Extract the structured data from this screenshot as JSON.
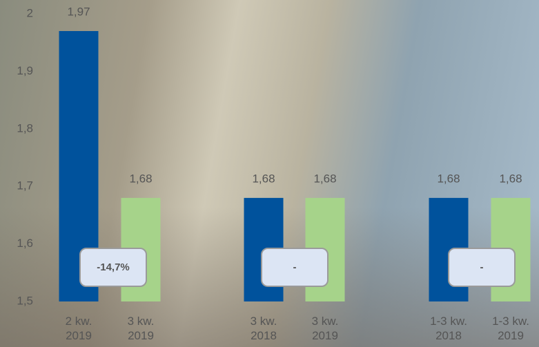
{
  "chart_data": {
    "type": "bar",
    "categories": [
      "2 kw. 2019",
      "3 kw. 2019",
      "3 kw. 2018",
      "3 kw. 2019",
      "1-3 kw. 2018",
      "1-3 kw. 2019"
    ],
    "values": [
      1.97,
      1.68,
      1.68,
      1.68,
      1.68,
      1.68
    ],
    "value_labels": [
      "1,97",
      "1,68",
      "1,68",
      "1,68",
      "1,68",
      "1,68"
    ],
    "colors": [
      "#00529c",
      "#a6d38a",
      "#00529c",
      "#a6d38a",
      "#00529c",
      "#a6d38a"
    ],
    "ylim": [
      1.5,
      2
    ],
    "yticks": [
      {
        "value": 1.5,
        "label": "1,5"
      },
      {
        "value": 1.6,
        "label": "1,6"
      },
      {
        "value": 1.7,
        "label": "1,7"
      },
      {
        "value": 1.8,
        "label": "1,8"
      },
      {
        "value": 1.9,
        "label": "1,9"
      },
      2
    ],
    "annotations": [
      "-14,7%",
      "-",
      "-"
    ]
  }
}
